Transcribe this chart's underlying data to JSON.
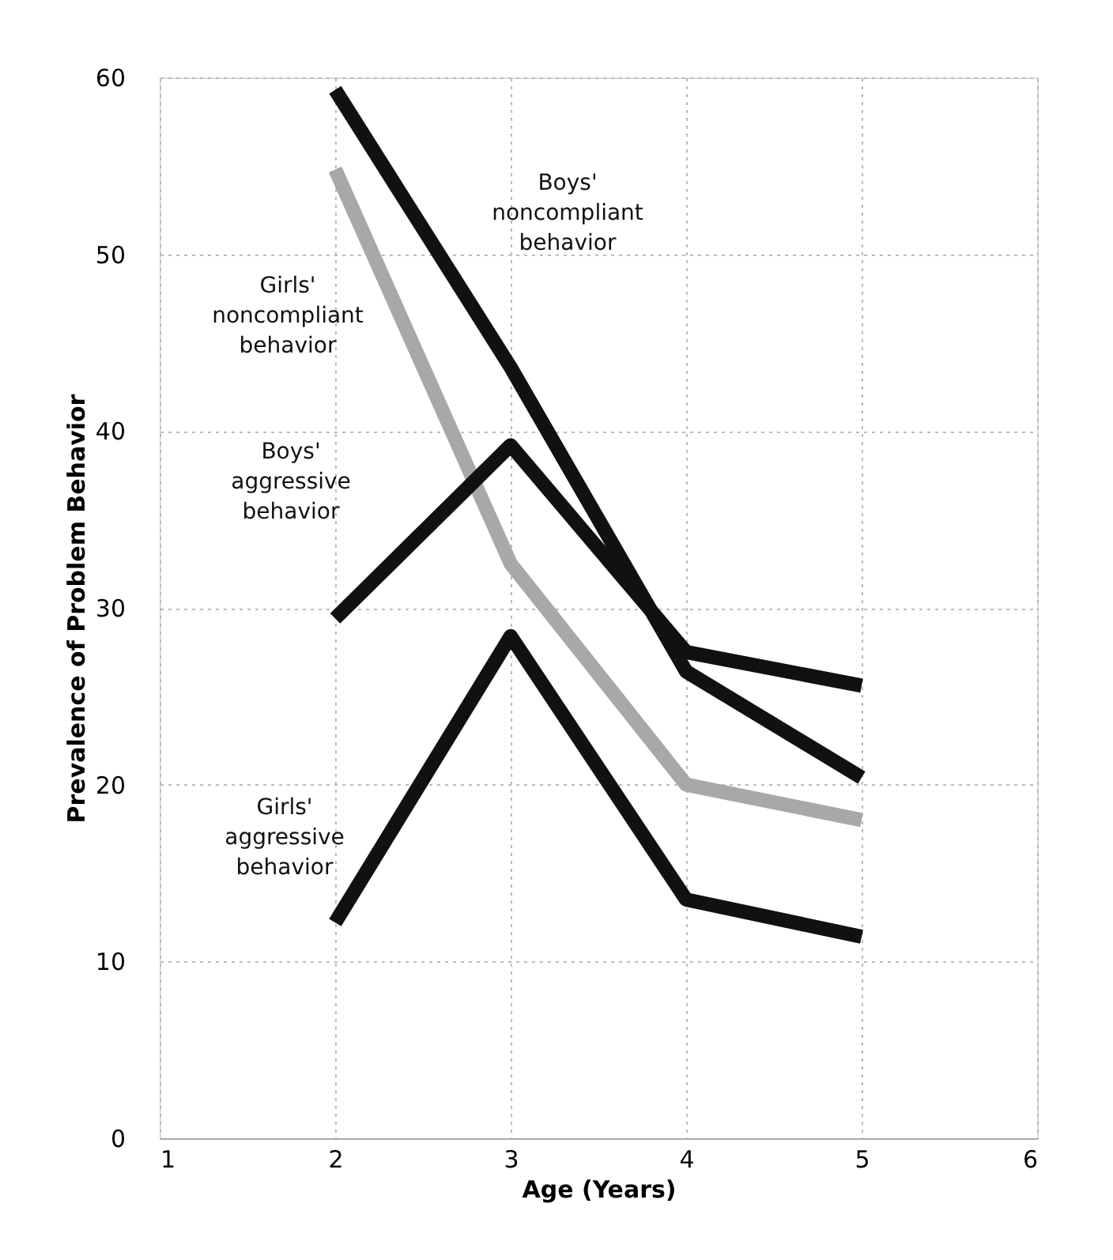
{
  "chart_data": {
    "type": "line",
    "xlabel": "Age (Years)",
    "ylabel": "Prevalence of Problem Behavior",
    "x": [
      2,
      3,
      4,
      5
    ],
    "xlim": [
      1,
      6
    ],
    "xticks": [
      1,
      2,
      3,
      4,
      5,
      6
    ],
    "ylim": [
      0,
      60
    ],
    "yticks": [
      0,
      10,
      20,
      30,
      40,
      50,
      60
    ],
    "grid": true,
    "legend": false,
    "marker": "none",
    "line_style": "solid",
    "series": [
      {
        "name": "Boys' noncompliant behavior",
        "color": "#111111",
        "values": [
          59.3,
          43.6,
          26.4,
          20.4
        ]
      },
      {
        "name": "Girls' noncompliant behavior",
        "color": "#a8a8a8",
        "values": [
          54.8,
          32.5,
          20,
          18
        ]
      },
      {
        "name": "Boys' aggressive behavior",
        "color": "#111111",
        "values": [
          29.4,
          39.2,
          27.5,
          25.6
        ]
      },
      {
        "name": "Girls' aggressive behavior",
        "color": "#111111",
        "values": [
          12.2,
          28.4,
          13.5,
          11.4
        ]
      }
    ]
  }
}
